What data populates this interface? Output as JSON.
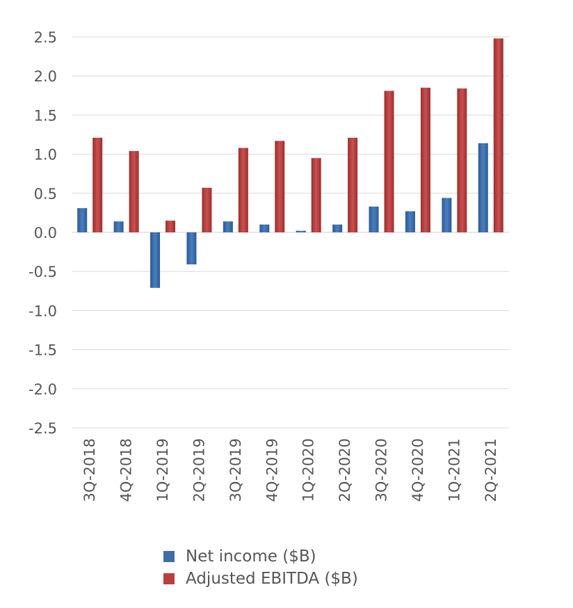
{
  "chart_data": {
    "type": "bar",
    "categories": [
      "3Q-2018",
      "4Q-2018",
      "1Q-2019",
      "2Q-2019",
      "3Q-2019",
      "4Q-2019",
      "1Q-2020",
      "2Q-2020",
      "3Q-2020",
      "4Q-2020",
      "1Q-2021",
      "2Q-2021"
    ],
    "series": [
      {
        "name": "Net income ($B)",
        "color": "#3e6da8",
        "values": [
          0.31,
          0.14,
          -0.71,
          -0.41,
          0.14,
          0.1,
          0.02,
          0.1,
          0.33,
          0.27,
          0.44,
          1.14
        ]
      },
      {
        "name": "Adjusted EBITDA ($B)",
        "color": "#b94040",
        "values": [
          1.21,
          1.04,
          0.15,
          0.57,
          1.08,
          1.17,
          0.95,
          1.21,
          1.81,
          1.85,
          1.84,
          2.48
        ]
      }
    ],
    "ylim": [
      -2.5,
      2.5
    ],
    "yticks": [
      "2.5",
      "2.0",
      "1.5",
      "1.0",
      "0.5",
      "0.0",
      "-0.5",
      "-1.0",
      "-1.5",
      "-2.0",
      "-2.5"
    ],
    "ytick_values": [
      2.5,
      2.0,
      1.5,
      1.0,
      0.5,
      0.0,
      -0.5,
      -1.0,
      -1.5,
      -2.0,
      -2.5
    ],
    "grid": true,
    "legend_position": "bottom"
  }
}
